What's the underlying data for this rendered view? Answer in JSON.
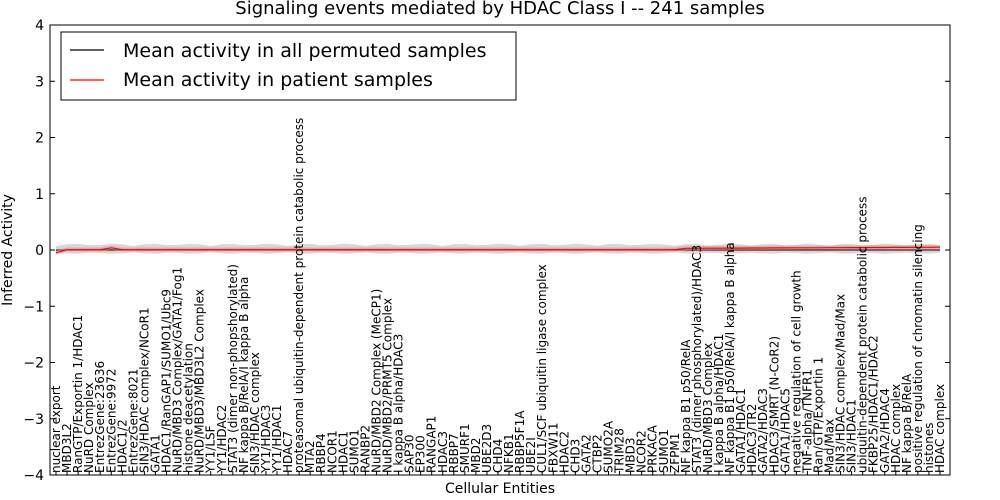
{
  "chart_data": {
    "type": "line",
    "title": "Signaling events mediated by HDAC Class I -- 241 samples",
    "xlabel": "Cellular Entities",
    "ylabel": "Inferred Activity",
    "ylim": [
      -4,
      4
    ],
    "yticks": [
      -4,
      -3,
      -2,
      -1,
      0,
      1,
      2,
      3,
      4
    ],
    "ytick_labels": [
      "−4",
      "−3",
      "−2",
      "−1",
      "0",
      "1",
      "2",
      "3",
      "4"
    ],
    "legend_position": "top-left",
    "series": [
      {
        "name": "Mean activity in all permuted samples",
        "color": "#000000",
        "values_note": "approximately 0 across all entities"
      },
      {
        "name": "Mean activity in patient samples",
        "color": "#ff0000",
        "values_note": "approximately 0, rising to ~0.05 at right"
      }
    ],
    "categories": [
      "nuclear export",
      "MBD3L2",
      "RanGTP/Exportin 1/HDAC1",
      "NuRD Complex",
      "EntrezGene:23636",
      "EntrezGene:9972",
      "HDAC1/2",
      "EntrezGene:8021",
      "SIN3/HDAC complex/NCoR1",
      "GATA1",
      "HDAC1/RanGAP1/SUMO1/Ubc9",
      "NuRD/MBD3 Complex/GATA1/Fog1",
      "histone deacetylation",
      "NuRD/MBD3/MBD3L2 Complex",
      "YY1/LSF",
      "YY1/HDAC2",
      "STAT3 (dimer non-phopshorylated)",
      "NF kappa B/RelA/I kappa B alpha",
      "SIN3/HDAC complex",
      "YY1/HDAC3",
      "YY1/HDAC1",
      "HDAC7",
      "proteasomal ubiquitin-dependent protein catabolic process",
      "MTA2",
      "RBBP4",
      "NCOR1",
      "HDAC1",
      "SUMO1",
      "RANBP2",
      "NuRD/MBD2 Complex (MeCP1)",
      "NuRD/MBD2/PRMT5 Complex",
      "I kappa B alpha/HDAC3",
      "SAP30",
      "EP300",
      "RANGAP1",
      "HDAC3",
      "RBBP7",
      "SMURF1",
      "MBD2",
      "UBE2D3",
      "CHD4",
      "NFKB1",
      "RBBP5F1A",
      "UBE2I",
      "CUL1/SCF ubiquitin ligase complex",
      "FBXW11",
      "HDAC2",
      "CHD3",
      "GATA2",
      "CTBP2",
      "SUMO2A",
      "TRIM28",
      "MBD3",
      "NCOR2",
      "PRKACA",
      "SUMO1",
      "ZFPM1",
      "NF kappa B1 p50/RelA",
      "STAT3 (dimer phosphorylated)/HDAC3",
      "NuRD/MBD3 Complex",
      "I kappa B alpha/HDAC1",
      "NF kappa B1 p50/RelA/I kappa B alpha",
      "GATA1/HDAC1",
      "HDAC3/TR2",
      "GATA2/HDAC3",
      "HDAC3/SMRT (N-CoR2)",
      "GATA1/HDAC5",
      "negative regulation of cell growth",
      "TNF-alpha/TNFR1",
      "Ran/GTP/Exportin 1",
      "Mad/Max",
      "SIN3/HDAC complex/Mad/Max",
      "SIN3/HDAC1",
      "ubiquitin-dependent protein catabolic process",
      "FKBP25/HDAC1/HDAC2",
      "GATA2/HDAC4",
      "HDAC complex",
      "NF kappa B/RelA",
      "positive regulation of chromatin silencing",
      "histones",
      "HDAC complex"
    ]
  }
}
